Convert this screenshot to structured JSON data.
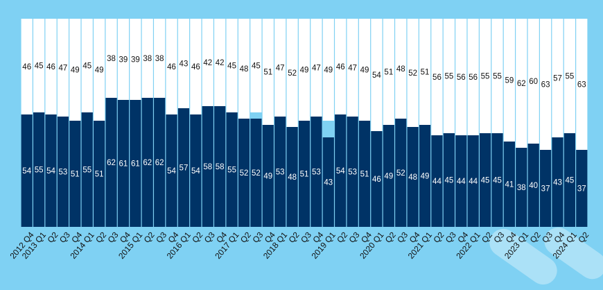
{
  "chart_data": {
    "type": "bar",
    "stacked": true,
    "categories": [
      "2012 Q4",
      "2013 Q1",
      "Q2",
      "Q3",
      "Q4",
      "2014 Q1",
      "Q2",
      "Q3",
      "Q4",
      "2015 Q1",
      "Q2",
      "Q3",
      "Q4",
      "2016 Q1",
      "Q2",
      "Q3",
      "Q4",
      "2017 Q1",
      "Q2",
      "Q3",
      "Q4",
      "2018 Q1",
      "Q2",
      "Q3",
      "Q4",
      "2019 Q1",
      "Q2",
      "Q3",
      "Q4",
      "2020 Q1",
      "Q2",
      "Q3",
      "Q4",
      "2021 Q1",
      "Q2",
      "Q3",
      "Q4",
      "2022 Q1",
      "Q2",
      "Q3",
      "Q4",
      "2023 Q1",
      "Q2",
      "Q3",
      "Q4",
      "2024 Q1",
      "Q2"
    ],
    "series": [
      {
        "color": "#003366",
        "values": [
          54,
          55,
          54,
          53,
          51,
          55,
          51,
          62,
          61,
          61,
          62,
          62,
          54,
          57,
          54,
          58,
          58,
          55,
          52,
          52,
          49,
          53,
          48,
          51,
          53,
          43,
          54,
          53,
          51,
          46,
          49,
          52,
          48,
          49,
          44,
          45,
          44,
          44,
          45,
          45,
          41,
          38,
          40,
          37,
          43,
          45,
          37
        ]
      },
      {
        "color": "#ffffff",
        "values": [
          46,
          45,
          46,
          47,
          49,
          45,
          49,
          38,
          39,
          39,
          38,
          38,
          46,
          43,
          46,
          42,
          42,
          45,
          48,
          45,
          51,
          47,
          52,
          49,
          47,
          49,
          46,
          47,
          49,
          54,
          51,
          48,
          52,
          51,
          56,
          55,
          56,
          56,
          55,
          55,
          59,
          62,
          60,
          63,
          57,
          55,
          63
        ]
      }
    ],
    "ylim": [
      0,
      100
    ],
    "grid": false,
    "legend": "none"
  }
}
